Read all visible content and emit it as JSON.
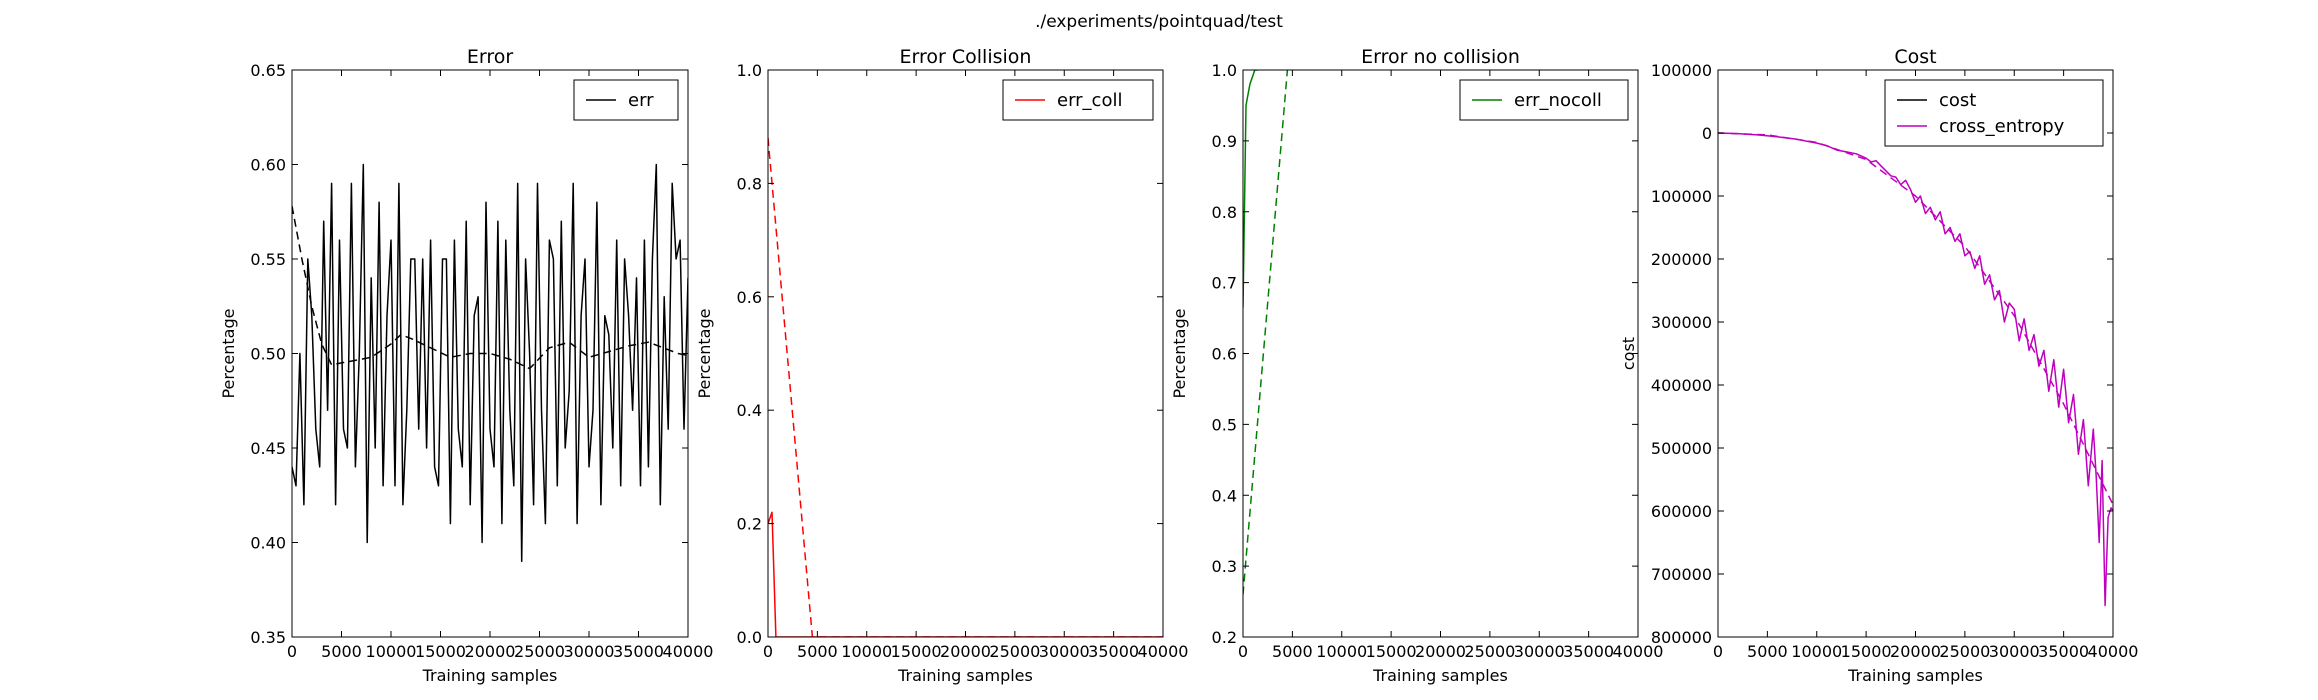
{
  "figure": {
    "suptitle": "./experiments/pointquad/test"
  },
  "chart_data": [
    {
      "type": "line",
      "title": "Error",
      "xlabel": "Training samples",
      "ylabel": "Percentage",
      "xlim": [
        0,
        40000
      ],
      "ylim": [
        0.35,
        0.65
      ],
      "xticks": [
        0,
        5000,
        10000,
        15000,
        20000,
        25000,
        30000,
        35000,
        40000
      ],
      "yticks": [
        0.35,
        0.4,
        0.45,
        0.5,
        0.55,
        0.6,
        0.65
      ],
      "ytick_labels": [
        "0.35",
        "0.40",
        "0.45",
        "0.50",
        "0.55",
        "0.60",
        "0.65"
      ],
      "legend": {
        "position": "top-right",
        "entries": [
          {
            "label": "err",
            "color": "#000000"
          }
        ]
      },
      "series": [
        {
          "name": "err",
          "color": "#000000",
          "style": "solid",
          "x": [
            0,
            400,
            800,
            1200,
            1600,
            2000,
            2400,
            2800,
            3200,
            3600,
            4000,
            4400,
            4800,
            5200,
            5600,
            6000,
            6400,
            6800,
            7200,
            7600,
            8000,
            8400,
            8800,
            9200,
            9600,
            10000,
            10400,
            10800,
            11200,
            11600,
            12000,
            12400,
            12800,
            13200,
            13600,
            14000,
            14400,
            14800,
            15200,
            15600,
            16000,
            16400,
            16800,
            17200,
            17600,
            18000,
            18400,
            18800,
            19200,
            19600,
            20000,
            20400,
            20800,
            21200,
            21600,
            22000,
            22400,
            22800,
            23200,
            23600,
            24000,
            24400,
            24800,
            25200,
            25600,
            26000,
            26400,
            26800,
            27200,
            27600,
            28000,
            28400,
            28800,
            29200,
            29600,
            30000,
            30400,
            30800,
            31200,
            31600,
            32000,
            32400,
            32800,
            33200,
            33600,
            34000,
            34400,
            34800,
            35200,
            35600,
            36000,
            36400,
            36800,
            37200,
            37600,
            38000,
            38400,
            38800,
            39200,
            39600,
            40000
          ],
          "y": [
            0.44,
            0.43,
            0.5,
            0.42,
            0.55,
            0.52,
            0.46,
            0.44,
            0.57,
            0.47,
            0.59,
            0.42,
            0.56,
            0.46,
            0.45,
            0.59,
            0.44,
            0.5,
            0.6,
            0.4,
            0.54,
            0.45,
            0.58,
            0.43,
            0.52,
            0.56,
            0.43,
            0.59,
            0.42,
            0.47,
            0.55,
            0.55,
            0.46,
            0.55,
            0.45,
            0.56,
            0.44,
            0.43,
            0.55,
            0.55,
            0.41,
            0.56,
            0.46,
            0.44,
            0.57,
            0.42,
            0.52,
            0.53,
            0.4,
            0.58,
            0.46,
            0.44,
            0.57,
            0.41,
            0.56,
            0.47,
            0.43,
            0.59,
            0.39,
            0.55,
            0.5,
            0.42,
            0.59,
            0.47,
            0.41,
            0.56,
            0.55,
            0.43,
            0.57,
            0.45,
            0.48,
            0.59,
            0.41,
            0.52,
            0.55,
            0.44,
            0.47,
            0.58,
            0.42,
            0.52,
            0.51,
            0.45,
            0.56,
            0.43,
            0.55,
            0.52,
            0.47,
            0.54,
            0.43,
            0.56,
            0.44,
            0.55,
            0.6,
            0.42,
            0.53,
            0.46,
            0.59,
            0.55,
            0.56,
            0.46,
            0.54
          ]
        },
        {
          "name": "",
          "color": "#000000",
          "style": "dashed",
          "x": [
            0,
            1000,
            2000,
            3000,
            4000,
            5000,
            6000,
            8000,
            10000,
            11000,
            12000,
            14000,
            16000,
            18000,
            20000,
            22000,
            24000,
            26000,
            28000,
            30000,
            32000,
            34000,
            36000,
            37000,
            38000,
            39000,
            40000
          ],
          "y": [
            0.578,
            0.55,
            0.525,
            0.505,
            0.494,
            0.495,
            0.496,
            0.498,
            0.505,
            0.51,
            0.508,
            0.503,
            0.498,
            0.5,
            0.5,
            0.497,
            0.492,
            0.503,
            0.506,
            0.498,
            0.501,
            0.504,
            0.506,
            0.504,
            0.502,
            0.5,
            0.499
          ]
        }
      ]
    },
    {
      "type": "line",
      "title": "Error Collision",
      "xlabel": "Training samples",
      "ylabel": "Percentage",
      "xlim": [
        0,
        40000
      ],
      "ylim": [
        0.0,
        1.0
      ],
      "xticks": [
        0,
        5000,
        10000,
        15000,
        20000,
        25000,
        30000,
        35000,
        40000
      ],
      "yticks": [
        0.0,
        0.2,
        0.4,
        0.6,
        0.8,
        1.0
      ],
      "ytick_labels": [
        "0.0",
        "0.2",
        "0.4",
        "0.6",
        "0.8",
        "1.0"
      ],
      "legend": {
        "position": "top-right",
        "entries": [
          {
            "label": "err_coll",
            "color": "#ff0000"
          }
        ]
      },
      "series": [
        {
          "name": "err_coll",
          "color": "#ff0000",
          "style": "solid",
          "x": [
            0,
            400,
            800,
            40000
          ],
          "y": [
            0.2,
            0.22,
            0.0,
            0.0
          ]
        },
        {
          "name": "",
          "color": "#ff0000",
          "style": "dashed",
          "x": [
            0,
            4500,
            40000
          ],
          "y": [
            0.88,
            0.0,
            0.0
          ]
        }
      ]
    },
    {
      "type": "line",
      "title": "Error no collision",
      "xlabel": "Training samples",
      "ylabel": "Percentage",
      "xlim": [
        0,
        40000
      ],
      "ylim": [
        0.2,
        1.0
      ],
      "xticks": [
        0,
        5000,
        10000,
        15000,
        20000,
        25000,
        30000,
        35000,
        40000
      ],
      "yticks": [
        0.2,
        0.3,
        0.4,
        0.5,
        0.6,
        0.7,
        0.8,
        0.9,
        1.0
      ],
      "ytick_labels": [
        "0.2",
        "0.3",
        "0.4",
        "0.5",
        "0.6",
        "0.7",
        "0.8",
        "0.9",
        "1.0"
      ],
      "legend": {
        "position": "top-right",
        "entries": [
          {
            "label": "err_nocoll",
            "color": "#008000"
          }
        ]
      },
      "series": [
        {
          "name": "err_nocoll",
          "color": "#008000",
          "style": "solid",
          "x": [
            0,
            300,
            700,
            1200,
            1500
          ],
          "y": [
            0.665,
            0.95,
            0.98,
            1.0,
            1.0
          ]
        },
        {
          "name": "",
          "color": "#008000",
          "style": "dashed",
          "x": [
            0,
            4500
          ],
          "y": [
            0.26,
            1.0
          ]
        }
      ]
    },
    {
      "type": "line",
      "title": "Cost",
      "xlabel": "Training samples",
      "ylabel": "cost",
      "xlim": [
        0,
        40000
      ],
      "ylim": [
        -800000,
        100000
      ],
      "xticks": [
        0,
        5000,
        10000,
        15000,
        20000,
        25000,
        30000,
        35000,
        40000
      ],
      "yticks": [
        100000,
        0,
        -100000,
        -200000,
        -300000,
        -400000,
        -500000,
        -600000,
        -700000,
        -800000
      ],
      "ytick_labels": [
        "100000",
        "0",
        "100000",
        "200000",
        "300000",
        "400000",
        "500000",
        "600000",
        "700000",
        "800000"
      ],
      "legend": {
        "position": "top-right",
        "entries": [
          {
            "label": "cost",
            "color": "#000000"
          },
          {
            "label": "cross_entropy",
            "color": "#bf00bf"
          }
        ]
      },
      "series": [
        {
          "name": "cross_entropy",
          "color": "#bf00bf",
          "style": "solid",
          "x": [
            0,
            2000,
            4000,
            6000,
            8000,
            10000,
            11000,
            12000,
            13000,
            14000,
            15000,
            15500,
            16000,
            16500,
            17000,
            17500,
            18000,
            18500,
            19000,
            19500,
            20000,
            20500,
            21000,
            21500,
            22000,
            22500,
            23000,
            23500,
            24000,
            24500,
            25000,
            25500,
            26000,
            26500,
            27000,
            27500,
            28000,
            28500,
            29000,
            29500,
            30000,
            30500,
            31000,
            31500,
            32000,
            32500,
            33000,
            33500,
            34000,
            34500,
            35000,
            35500,
            36000,
            36500,
            37000,
            37500,
            38000,
            38300,
            38600,
            38900,
            39200,
            39500,
            39800,
            40000
          ],
          "y": [
            0,
            -1000,
            -3000,
            -6000,
            -10000,
            -16000,
            -20000,
            -27000,
            -30000,
            -33000,
            -40000,
            -46000,
            -44000,
            -52000,
            -60000,
            -68000,
            -70000,
            -82000,
            -75000,
            -90000,
            -110000,
            -100000,
            -128000,
            -118000,
            -138000,
            -125000,
            -160000,
            -150000,
            -172000,
            -160000,
            -195000,
            -188000,
            -215000,
            -195000,
            -240000,
            -225000,
            -265000,
            -250000,
            -300000,
            -270000,
            -280000,
            -330000,
            -295000,
            -345000,
            -320000,
            -370000,
            -345000,
            -410000,
            -360000,
            -435000,
            -375000,
            -460000,
            -415000,
            -510000,
            -455000,
            -560000,
            -470000,
            -545000,
            -650000,
            -520000,
            -750000,
            -610000,
            -595000,
            -600000
          ]
        },
        {
          "name": "",
          "color": "#bf00bf",
          "style": "dashed",
          "x": [
            0,
            5000,
            10000,
            15000,
            20000,
            25000,
            30000,
            35000,
            40000
          ],
          "y": [
            0,
            -3000,
            -15000,
            -42000,
            -100000,
            -180000,
            -290000,
            -430000,
            -590000
          ]
        }
      ]
    }
  ]
}
